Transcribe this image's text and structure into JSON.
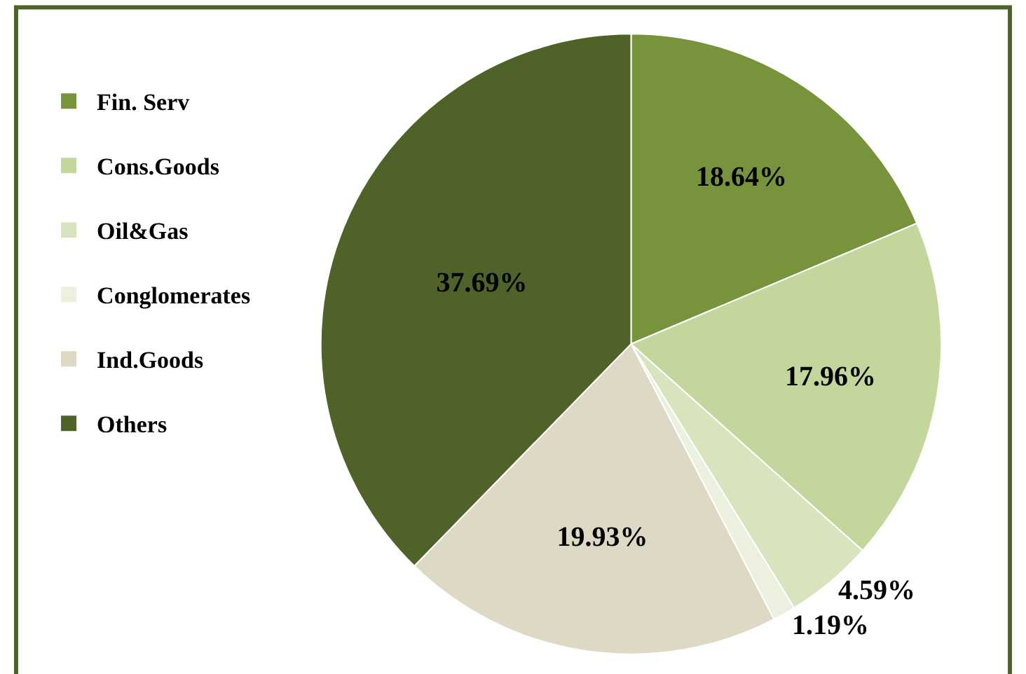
{
  "chart_data": {
    "type": "pie",
    "categories": [
      "Fin. Serv",
      "Cons.Goods",
      "Oil&Gas",
      "Conglomerates",
      "Ind.Goods",
      "Others"
    ],
    "values": [
      18.64,
      17.96,
      4.59,
      1.19,
      19.93,
      37.69
    ],
    "colors": [
      "#77933c",
      "#c3d69b",
      "#d7e4bd",
      "#ebf1de",
      "#ddd9c4",
      "#4f6228"
    ],
    "data_labels": true,
    "value_labels": [
      "18.64%",
      "17.96%",
      "4.59%",
      "1.19%",
      "19.93%",
      "37.69%"
    ],
    "legend": "left"
  }
}
